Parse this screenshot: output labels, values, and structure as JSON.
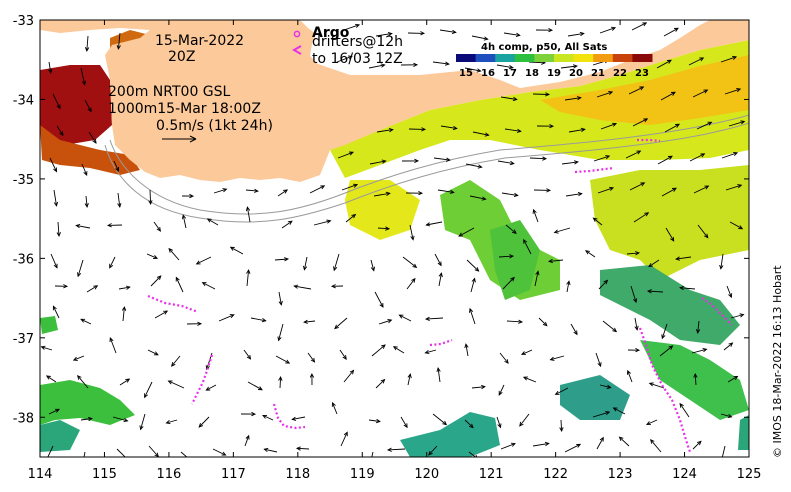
{
  "map": {
    "date_line": "15-Mar-2022",
    "time_line": "20Z",
    "product_lines": [
      "200m  NRT00 GSL",
      "1000m15-Mar 18:00Z"
    ],
    "speed_scale_label": "0.5m/s (1kt 24h)",
    "argo_label": "Argo",
    "drifters_line1": "drifters@12h",
    "drifters_line2": "to 16/03 12Z",
    "credit": "© IMOS 18-Mar-2022 16:13 Hobart"
  },
  "colorbar": {
    "title": "4h comp, p50, All Sats",
    "ticks": [
      "15",
      "16",
      "17",
      "18",
      "19",
      "20",
      "21",
      "22",
      "23"
    ],
    "colors": [
      "#0a0a7a",
      "#1f4fbf",
      "#1aa3a0",
      "#2fbf3f",
      "#7dd23a",
      "#c9e61e",
      "#f2e30f",
      "#f29c12",
      "#c8420c",
      "#8a0a0a"
    ]
  },
  "axes": {
    "x_ticks": [
      "114",
      "115",
      "116",
      "117",
      "118",
      "119",
      "120",
      "121",
      "122",
      "123",
      "124",
      "125"
    ],
    "y_ticks": [
      "-33",
      "-34",
      "-35",
      "-36",
      "-37",
      "-38"
    ],
    "xlim": [
      114,
      125
    ],
    "ylim": [
      -38.5,
      -33
    ]
  },
  "colors": {
    "land": "#fcc99a",
    "ocean": "#ffffff",
    "drifter": "#e830e8",
    "arrow": "#000000"
  }
}
